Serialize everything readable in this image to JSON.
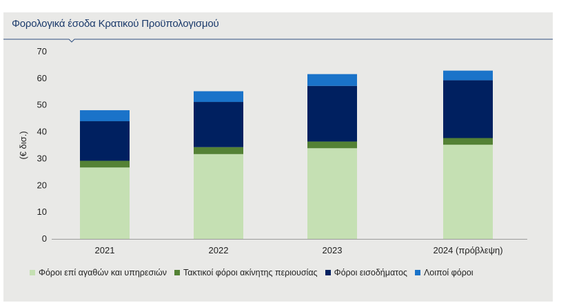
{
  "title": "Φορολογικά έσοδα Κρατικού Προϋπολογισμού",
  "chart_data": {
    "type": "bar",
    "stacked": true,
    "ylabel": "(€ δισ.)",
    "xlabel": "",
    "ylim": [
      0,
      70
    ],
    "yticks": [
      0,
      10,
      20,
      30,
      40,
      50,
      60,
      70
    ],
    "grid": false,
    "legend_position": "bottom",
    "categories": [
      "2021",
      "2022",
      "2023",
      "2024 (πρόβλεψη)"
    ],
    "series": [
      {
        "name": "Φόροι επί αγαθών και υπηρεσιών",
        "color": "#c5e0b3",
        "values": [
          26.7,
          31.7,
          33.9,
          35.2
        ]
      },
      {
        "name": "Τακτικοί φόροι ακίνητης περιουσίας",
        "color": "#548235",
        "values": [
          2.5,
          2.6,
          2.5,
          2.5
        ]
      },
      {
        "name": "Φόροι εισοδήματος",
        "color": "#002060",
        "values": [
          14.8,
          16.9,
          20.8,
          21.6
        ]
      },
      {
        "name": "Λοιποί φόροι",
        "color": "#1a73c9",
        "values": [
          4.1,
          4.0,
          4.4,
          3.6
        ]
      }
    ]
  }
}
